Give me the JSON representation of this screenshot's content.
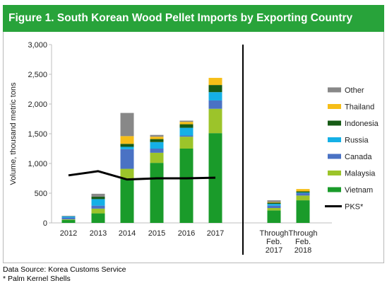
{
  "title": "Figure 1. South Korean Wood Pellet Imports by Exporting Country",
  "footnotes": {
    "source": "Data Source: Korea Customs Service",
    "note": "* Palm Kernel Shells"
  },
  "colors": {
    "title_bg": "#28a33a",
    "Vietnam": "#1a9b2a",
    "Malaysia": "#9cc42a",
    "Canada": "#4a72c4",
    "Russia": "#15b0e6",
    "Indonesia": "#175b16",
    "Thailand": "#f6be18",
    "Other": "#888888",
    "PKS": "#000000"
  },
  "chart_data": {
    "type": "bar",
    "stacked": true,
    "ylabel": "Volume, thousand metric tons",
    "ylim": [
      0,
      3000
    ],
    "yticks": [
      "0",
      "500",
      "1,000",
      "1,500",
      "2,000",
      "2,500",
      "3,000"
    ],
    "ytick_values": [
      0,
      500,
      1000,
      1500,
      2000,
      2500,
      3000
    ],
    "categories": [
      "2012",
      "2013",
      "2014",
      "2015",
      "2016",
      "2017",
      "Through Feb. 2017",
      "Through Feb. 2018"
    ],
    "category_lines": [
      [
        "2012"
      ],
      [
        "2013"
      ],
      [
        "2014"
      ],
      [
        "2015"
      ],
      [
        "2016"
      ],
      [
        "2017"
      ],
      [
        "Through",
        "Feb.",
        "2017"
      ],
      [
        "Through",
        "Feb.",
        "2018"
      ]
    ],
    "series": [
      {
        "name": "Vietnam",
        "values": [
          50,
          160,
          740,
          1010,
          1250,
          1510,
          210,
          380
        ]
      },
      {
        "name": "Malaysia",
        "values": [
          10,
          80,
          170,
          170,
          200,
          410,
          40,
          80
        ]
      },
      {
        "name": "Canada",
        "values": [
          30,
          50,
          330,
          70,
          20,
          140,
          40,
          40
        ]
      },
      {
        "name": "Russia",
        "values": [
          20,
          110,
          40,
          110,
          130,
          140,
          30,
          10
        ]
      },
      {
        "name": "Indonesia",
        "values": [
          0,
          40,
          50,
          50,
          60,
          120,
          20,
          20
        ]
      },
      {
        "name": "Thailand",
        "values": [
          0,
          0,
          130,
          40,
          40,
          120,
          10,
          40
        ]
      },
      {
        "name": "Other",
        "values": [
          10,
          50,
          390,
          30,
          20,
          0,
          30,
          0
        ]
      }
    ],
    "line_series": {
      "name": "PKS*",
      "values": [
        800,
        870,
        730,
        750,
        750,
        760,
        null,
        null
      ]
    },
    "legend_order": [
      "Other",
      "Thailand",
      "Indonesia",
      "Russia",
      "Canada",
      "Malaysia",
      "Vietnam",
      "PKS*"
    ],
    "legend_position": "right",
    "grid": false,
    "divider_after_category": "2017"
  }
}
